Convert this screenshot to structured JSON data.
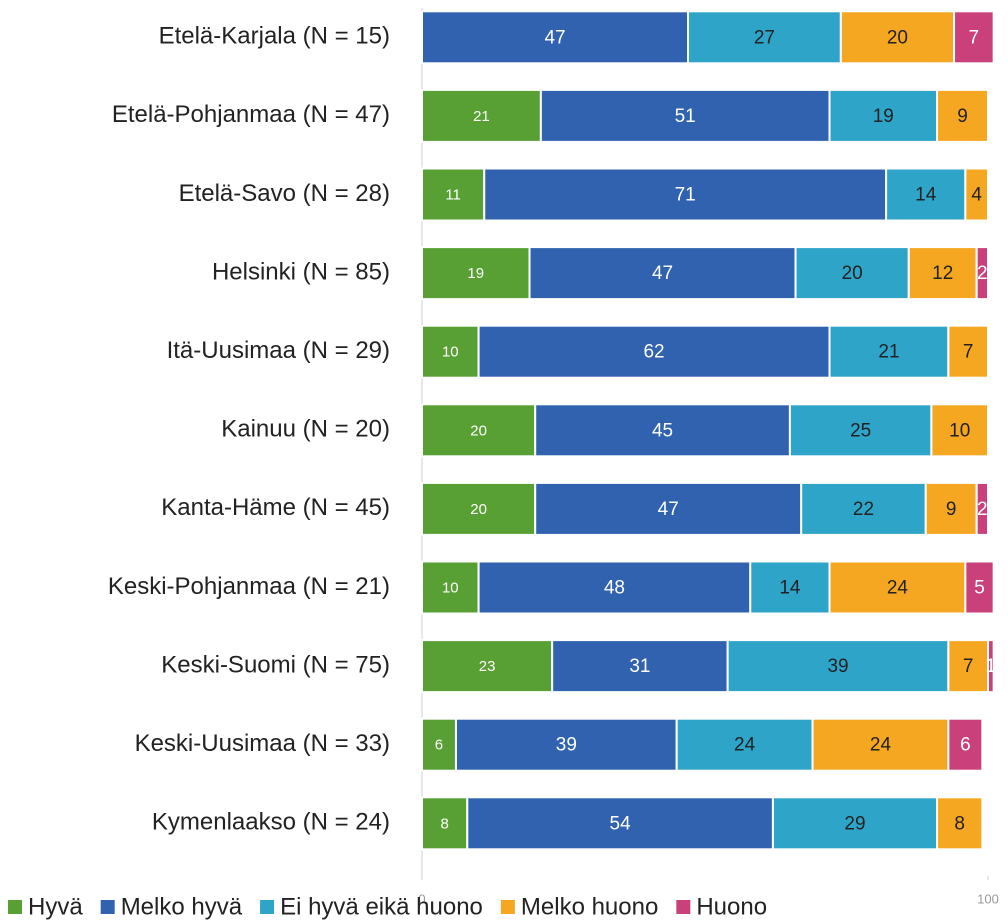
{
  "chart_data": {
    "type": "stacked_barh",
    "categories": [
      "Etelä-Karjala (N = 15)",
      "Etelä-Pohjanmaa (N = 47)",
      "Etelä-Savo (N = 28)",
      "Helsinki (N = 85)",
      "Itä-Uusimaa (N = 29)",
      "Kainuu (N = 20)",
      "Kanta-Häme (N = 45)",
      "Keski-Pohjanmaa (N = 21)",
      "Keski-Suomi (N = 75)",
      "Keski-Uusimaa (N = 33)",
      "Kymenlaakso (N = 24)"
    ],
    "series": [
      {
        "name": "Hyvä",
        "color": "#59a034",
        "values": [
          0,
          21,
          11,
          19,
          10,
          20,
          20,
          10,
          23,
          6,
          8
        ]
      },
      {
        "name": "Melko hyvä",
        "color": "#3162b0",
        "values": [
          47,
          51,
          71,
          47,
          62,
          45,
          47,
          48,
          31,
          39,
          54
        ]
      },
      {
        "name": "Ei hyvä eikä huono",
        "color": "#2fa4c9",
        "values": [
          27,
          19,
          14,
          20,
          21,
          25,
          22,
          14,
          39,
          24,
          29
        ]
      },
      {
        "name": "Melko huono",
        "color": "#f6a722",
        "values": [
          20,
          9,
          4,
          12,
          7,
          10,
          9,
          24,
          7,
          24,
          8
        ]
      },
      {
        "name": "Huono",
        "color": "#c9407a",
        "values": [
          7,
          0,
          0,
          2,
          0,
          0,
          2,
          5,
          1,
          6,
          0
        ]
      }
    ],
    "xlim": [
      0,
      100
    ],
    "xticks": [
      0,
      100
    ]
  }
}
